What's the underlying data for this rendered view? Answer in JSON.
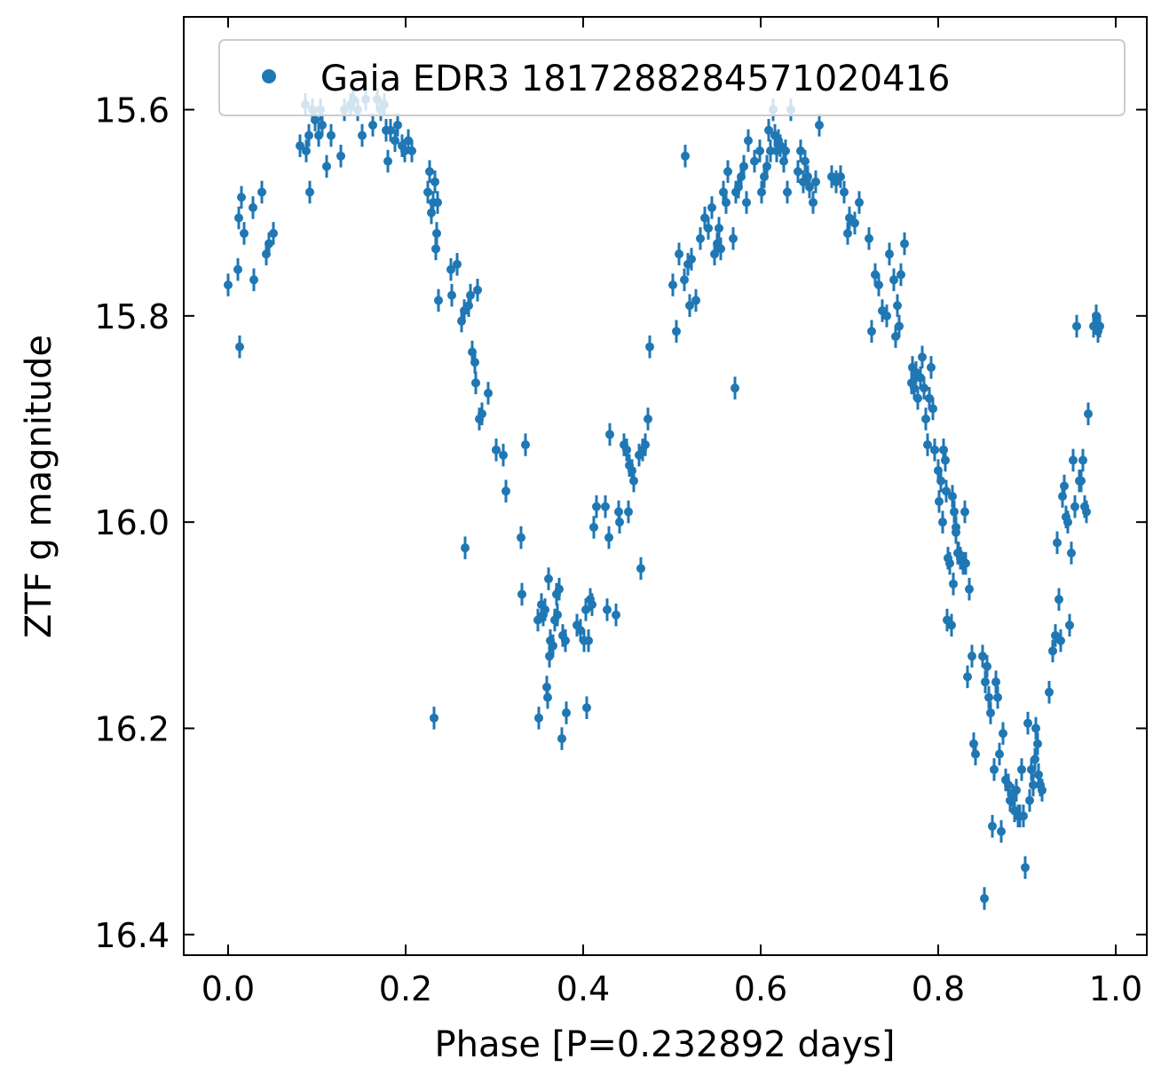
{
  "chart_data": {
    "type": "scatter",
    "xlabel": "Phase [P=0.232892 days]",
    "ylabel": "ZTF g magnitude",
    "xlim": [
      -0.05,
      1.035
    ],
    "ylim": [
      16.42,
      15.51
    ],
    "y_inverted": true,
    "x_ticks": [
      0.0,
      0.2,
      0.4,
      0.6,
      0.8,
      1.0
    ],
    "x_tick_labels": [
      "0.0",
      "0.2",
      "0.4",
      "0.6",
      "0.8",
      "1.0"
    ],
    "y_ticks": [
      15.6,
      15.8,
      16.0,
      16.2,
      16.4
    ],
    "y_tick_labels": [
      "15.6",
      "15.8",
      "16.0",
      "16.2",
      "16.4"
    ],
    "grid": false,
    "legend_position": "top-right",
    "error_bar": 0.011,
    "colors": {
      "series": "#1f77b4"
    },
    "series": [
      {
        "name": "Gaia EDR3 1817288284571020416",
        "points": [
          [
            0.0,
            15.77
          ],
          [
            0.011,
            15.755
          ],
          [
            0.012,
            15.705
          ],
          [
            0.013,
            15.83
          ],
          [
            0.015,
            15.685
          ],
          [
            0.018,
            15.72
          ],
          [
            0.028,
            15.695
          ],
          [
            0.029,
            15.765
          ],
          [
            0.038,
            15.68
          ],
          [
            0.043,
            15.74
          ],
          [
            0.046,
            15.73
          ],
          [
            0.051,
            15.72
          ],
          [
            0.081,
            15.635
          ],
          [
            0.087,
            15.595
          ],
          [
            0.088,
            15.64
          ],
          [
            0.091,
            15.625
          ],
          [
            0.092,
            15.68
          ],
          [
            0.095,
            15.6
          ],
          [
            0.098,
            15.61
          ],
          [
            0.102,
            15.625
          ],
          [
            0.104,
            15.6
          ],
          [
            0.106,
            15.615
          ],
          [
            0.111,
            15.655
          ],
          [
            0.116,
            15.625
          ],
          [
            0.127,
            15.645
          ],
          [
            0.131,
            15.6
          ],
          [
            0.138,
            15.595
          ],
          [
            0.141,
            15.59
          ],
          [
            0.146,
            15.6
          ],
          [
            0.151,
            15.625
          ],
          [
            0.155,
            15.59
          ],
          [
            0.163,
            15.615
          ],
          [
            0.168,
            15.59
          ],
          [
            0.172,
            15.6
          ],
          [
            0.176,
            15.595
          ],
          [
            0.178,
            15.62
          ],
          [
            0.18,
            15.65
          ],
          [
            0.183,
            15.62
          ],
          [
            0.188,
            15.63
          ],
          [
            0.191,
            15.615
          ],
          [
            0.196,
            15.635
          ],
          [
            0.199,
            15.64
          ],
          [
            0.203,
            15.63
          ],
          [
            0.207,
            15.64
          ],
          [
            0.225,
            15.68
          ],
          [
            0.227,
            15.66
          ],
          [
            0.229,
            15.7
          ],
          [
            0.231,
            15.69
          ],
          [
            0.233,
            15.67
          ],
          [
            0.234,
            15.735
          ],
          [
            0.235,
            15.72
          ],
          [
            0.236,
            15.69
          ],
          [
            0.237,
            15.785
          ],
          [
            0.232,
            16.19
          ],
          [
            0.251,
            15.755
          ],
          [
            0.252,
            15.78
          ],
          [
            0.258,
            15.75
          ],
          [
            0.263,
            15.805
          ],
          [
            0.266,
            15.795
          ],
          [
            0.267,
            16.025
          ],
          [
            0.271,
            15.79
          ],
          [
            0.273,
            15.78
          ],
          [
            0.275,
            15.835
          ],
          [
            0.278,
            15.845
          ],
          [
            0.279,
            15.865
          ],
          [
            0.281,
            15.775
          ],
          [
            0.283,
            15.9
          ],
          [
            0.286,
            15.895
          ],
          [
            0.293,
            15.875
          ],
          [
            0.302,
            15.93
          ],
          [
            0.31,
            15.935
          ],
          [
            0.313,
            15.97
          ],
          [
            0.33,
            16.015
          ],
          [
            0.331,
            16.07
          ],
          [
            0.335,
            15.925
          ],
          [
            0.349,
            16.095
          ],
          [
            0.35,
            16.19
          ],
          [
            0.353,
            16.08
          ],
          [
            0.355,
            16.09
          ],
          [
            0.357,
            16.085
          ],
          [
            0.359,
            16.16
          ],
          [
            0.36,
            16.17
          ],
          [
            0.361,
            16.055
          ],
          [
            0.362,
            16.13
          ],
          [
            0.363,
            16.115
          ],
          [
            0.366,
            16.12
          ],
          [
            0.368,
            16.095
          ],
          [
            0.37,
            16.07
          ],
          [
            0.371,
            16.09
          ],
          [
            0.373,
            16.065
          ],
          [
            0.376,
            16.21
          ],
          [
            0.377,
            16.11
          ],
          [
            0.38,
            16.115
          ],
          [
            0.381,
            16.185
          ],
          [
            0.393,
            16.1
          ],
          [
            0.397,
            16.105
          ],
          [
            0.401,
            16.115
          ],
          [
            0.403,
            16.085
          ],
          [
            0.404,
            16.18
          ],
          [
            0.406,
            16.115
          ],
          [
            0.408,
            16.075
          ],
          [
            0.41,
            16.08
          ],
          [
            0.412,
            16.005
          ],
          [
            0.415,
            15.985
          ],
          [
            0.425,
            15.985
          ],
          [
            0.427,
            16.085
          ],
          [
            0.429,
            16.015
          ],
          [
            0.43,
            15.915
          ],
          [
            0.437,
            16.09
          ],
          [
            0.44,
            15.99
          ],
          [
            0.441,
            16.0
          ],
          [
            0.446,
            15.925
          ],
          [
            0.449,
            15.93
          ],
          [
            0.451,
            15.99
          ],
          [
            0.452,
            15.945
          ],
          [
            0.455,
            15.95
          ],
          [
            0.457,
            15.96
          ],
          [
            0.463,
            15.935
          ],
          [
            0.465,
            16.045
          ],
          [
            0.467,
            15.93
          ],
          [
            0.47,
            15.925
          ],
          [
            0.473,
            15.9
          ],
          [
            0.475,
            15.83
          ],
          [
            0.501,
            15.77
          ],
          [
            0.505,
            15.815
          ],
          [
            0.508,
            15.74
          ],
          [
            0.514,
            15.765
          ],
          [
            0.515,
            15.645
          ],
          [
            0.518,
            15.75
          ],
          [
            0.52,
            15.79
          ],
          [
            0.522,
            15.745
          ],
          [
            0.527,
            15.785
          ],
          [
            0.532,
            15.725
          ],
          [
            0.537,
            15.705
          ],
          [
            0.541,
            15.715
          ],
          [
            0.545,
            15.695
          ],
          [
            0.548,
            15.74
          ],
          [
            0.551,
            15.73
          ],
          [
            0.553,
            15.715
          ],
          [
            0.555,
            15.735
          ],
          [
            0.558,
            15.68
          ],
          [
            0.561,
            15.69
          ],
          [
            0.563,
            15.66
          ],
          [
            0.569,
            15.725
          ],
          [
            0.572,
            15.68
          ],
          [
            0.575,
            15.675
          ],
          [
            0.578,
            15.665
          ],
          [
            0.581,
            15.655
          ],
          [
            0.584,
            15.69
          ],
          [
            0.586,
            15.63
          ],
          [
            0.571,
            15.87
          ],
          [
            0.593,
            15.65
          ],
          [
            0.599,
            15.64
          ],
          [
            0.601,
            15.68
          ],
          [
            0.604,
            15.665
          ],
          [
            0.607,
            15.655
          ],
          [
            0.609,
            15.62
          ],
          [
            0.611,
            15.64
          ],
          [
            0.614,
            15.6
          ],
          [
            0.616,
            15.625
          ],
          [
            0.618,
            15.64
          ],
          [
            0.62,
            15.63
          ],
          [
            0.622,
            15.635
          ],
          [
            0.626,
            15.65
          ],
          [
            0.628,
            15.64
          ],
          [
            0.63,
            15.68
          ],
          [
            0.634,
            15.6
          ],
          [
            0.642,
            15.66
          ],
          [
            0.645,
            15.64
          ],
          [
            0.648,
            15.67
          ],
          [
            0.65,
            15.65
          ],
          [
            0.653,
            15.665
          ],
          [
            0.655,
            15.675
          ],
          [
            0.659,
            15.69
          ],
          [
            0.662,
            15.67
          ],
          [
            0.666,
            15.615
          ],
          [
            0.68,
            15.665
          ],
          [
            0.685,
            15.67
          ],
          [
            0.69,
            15.665
          ],
          [
            0.694,
            15.68
          ],
          [
            0.698,
            15.72
          ],
          [
            0.7,
            15.705
          ],
          [
            0.706,
            15.71
          ],
          [
            0.711,
            15.69
          ],
          [
            0.722,
            15.725
          ],
          [
            0.725,
            15.815
          ],
          [
            0.729,
            15.76
          ],
          [
            0.733,
            15.77
          ],
          [
            0.737,
            15.795
          ],
          [
            0.742,
            15.8
          ],
          [
            0.745,
            15.74
          ],
          [
            0.75,
            15.765
          ],
          [
            0.752,
            15.82
          ],
          [
            0.754,
            15.79
          ],
          [
            0.756,
            15.81
          ],
          [
            0.758,
            15.76
          ],
          [
            0.762,
            15.73
          ],
          [
            0.77,
            15.865
          ],
          [
            0.771,
            15.85
          ],
          [
            0.773,
            15.87
          ],
          [
            0.775,
            15.855
          ],
          [
            0.777,
            15.88
          ],
          [
            0.78,
            15.86
          ],
          [
            0.782,
            15.84
          ],
          [
            0.784,
            15.87
          ],
          [
            0.786,
            15.9
          ],
          [
            0.788,
            15.925
          ],
          [
            0.79,
            15.88
          ],
          [
            0.792,
            15.85
          ],
          [
            0.794,
            15.89
          ],
          [
            0.796,
            15.93
          ],
          [
            0.8,
            15.95
          ],
          [
            0.801,
            15.98
          ],
          [
            0.803,
            15.96
          ],
          [
            0.805,
            16.0
          ],
          [
            0.806,
            15.93
          ],
          [
            0.808,
            15.94
          ],
          [
            0.809,
            15.97
          ],
          [
            0.811,
            16.035
          ],
          [
            0.813,
            16.04
          ],
          [
            0.816,
            15.975
          ],
          [
            0.818,
            15.99
          ],
          [
            0.82,
            16.01
          ],
          [
            0.822,
            16.03
          ],
          [
            0.81,
            16.095
          ],
          [
            0.815,
            16.1
          ],
          [
            0.817,
            16.06
          ],
          [
            0.82,
            16.005
          ],
          [
            0.823,
            16.03
          ],
          [
            0.825,
            16.035
          ],
          [
            0.828,
            16.04
          ],
          [
            0.83,
            15.99
          ],
          [
            0.831,
            16.04
          ],
          [
            0.833,
            16.15
          ],
          [
            0.835,
            16.065
          ],
          [
            0.838,
            16.13
          ],
          [
            0.84,
            16.215
          ],
          [
            0.842,
            16.225
          ],
          [
            0.85,
            16.13
          ],
          [
            0.853,
            16.155
          ],
          [
            0.855,
            16.14
          ],
          [
            0.857,
            16.17
          ],
          [
            0.859,
            16.185
          ],
          [
            0.861,
            16.295
          ],
          [
            0.863,
            16.24
          ],
          [
            0.865,
            16.155
          ],
          [
            0.867,
            16.17
          ],
          [
            0.869,
            16.225
          ],
          [
            0.871,
            16.3
          ],
          [
            0.873,
            16.205
          ],
          [
            0.876,
            16.25
          ],
          [
            0.879,
            16.255
          ],
          [
            0.881,
            16.27
          ],
          [
            0.884,
            16.265
          ],
          [
            0.886,
            16.28
          ],
          [
            0.888,
            16.26
          ],
          [
            0.89,
            16.285
          ],
          [
            0.892,
            16.285
          ],
          [
            0.894,
            16.24
          ],
          [
            0.896,
            16.285
          ],
          [
            0.898,
            16.335
          ],
          [
            0.901,
            16.195
          ],
          [
            0.903,
            16.27
          ],
          [
            0.905,
            16.24
          ],
          [
            0.907,
            16.255
          ],
          [
            0.909,
            16.23
          ],
          [
            0.91,
            16.2
          ],
          [
            0.912,
            16.215
          ],
          [
            0.913,
            16.245
          ],
          [
            0.915,
            16.255
          ],
          [
            0.917,
            16.26
          ],
          [
            0.925,
            16.165
          ],
          [
            0.929,
            16.125
          ],
          [
            0.932,
            16.11
          ],
          [
            0.934,
            16.02
          ],
          [
            0.936,
            16.075
          ],
          [
            0.938,
            16.115
          ],
          [
            0.94,
            15.975
          ],
          [
            0.942,
            15.965
          ],
          [
            0.944,
            15.995
          ],
          [
            0.946,
            16.0
          ],
          [
            0.948,
            16.1
          ],
          [
            0.95,
            16.03
          ],
          [
            0.952,
            15.94
          ],
          [
            0.954,
            15.985
          ],
          [
            0.956,
            15.81
          ],
          [
            0.959,
            15.96
          ],
          [
            0.961,
            15.96
          ],
          [
            0.963,
            15.94
          ],
          [
            0.965,
            15.985
          ],
          [
            0.967,
            15.99
          ],
          [
            0.969,
            15.895
          ],
          [
            0.975,
            15.81
          ],
          [
            0.978,
            15.8
          ],
          [
            0.98,
            15.815
          ],
          [
            0.982,
            15.81
          ],
          [
            0.852,
            16.365
          ]
        ]
      }
    ]
  }
}
